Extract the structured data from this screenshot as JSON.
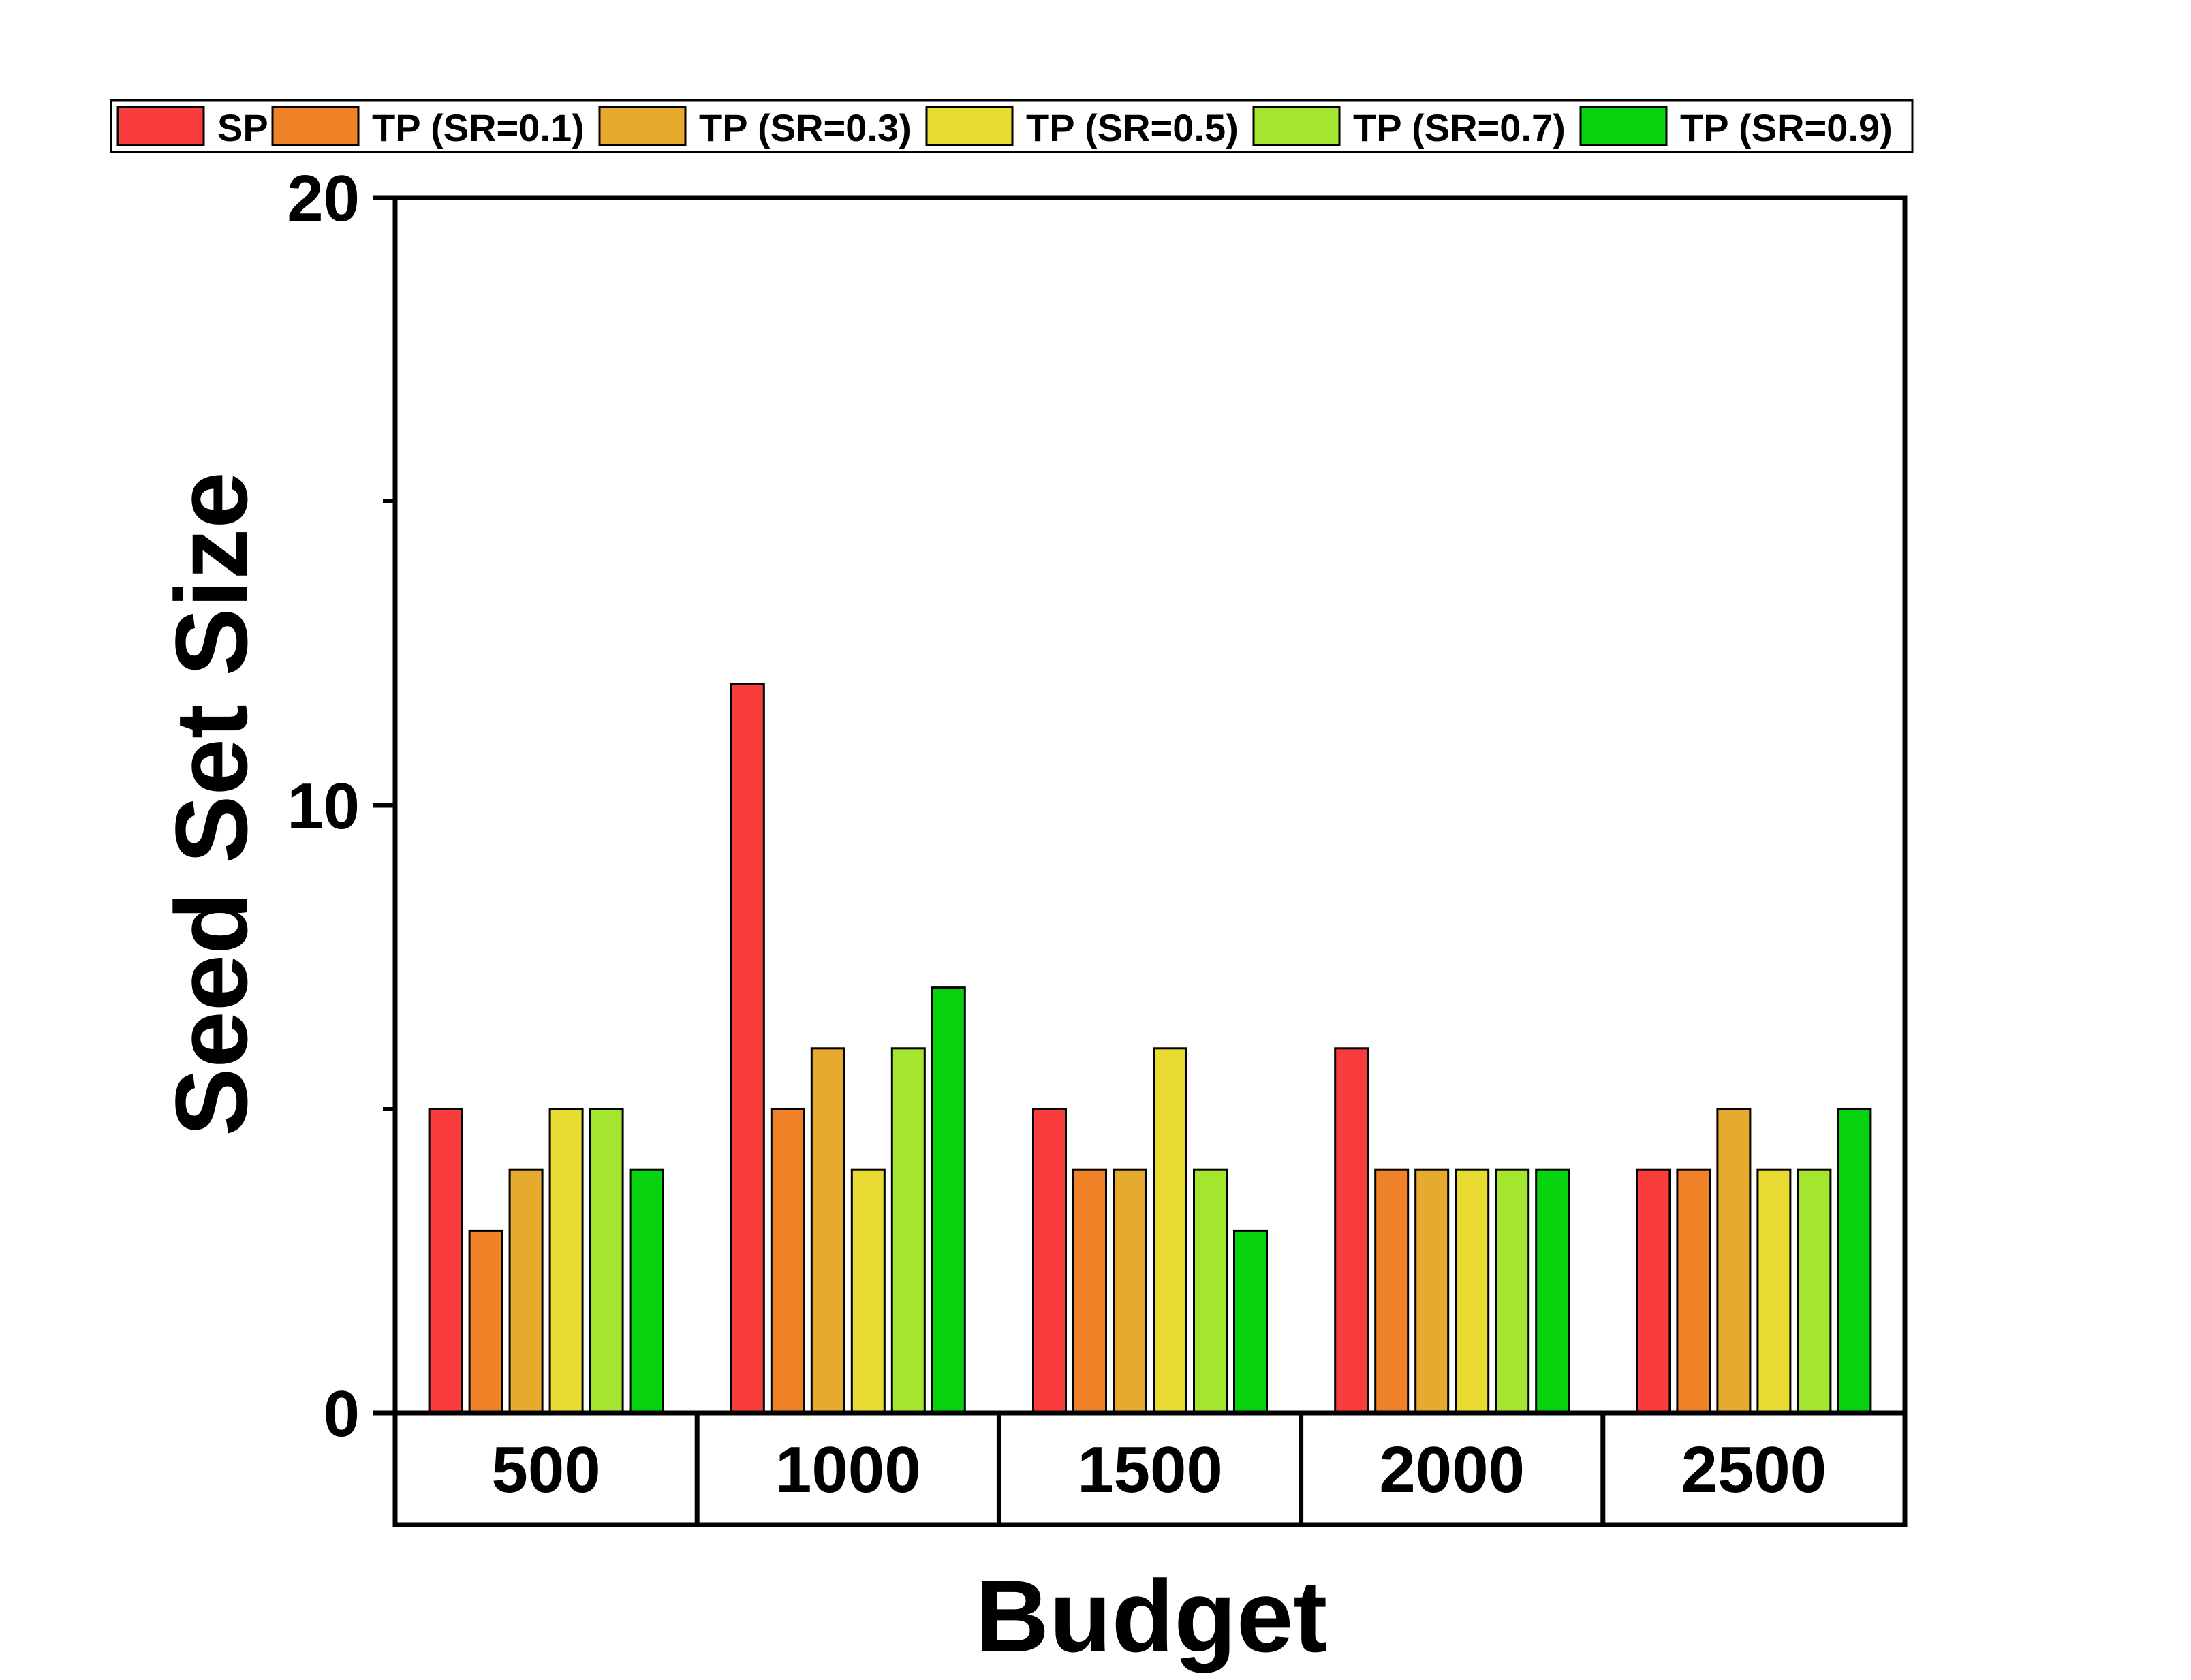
{
  "chart_data": {
    "type": "bar",
    "title": "",
    "xlabel": "Budget",
    "ylabel": "Seed Set Size",
    "categories": [
      "500",
      "1000",
      "1500",
      "2000",
      "2500"
    ],
    "ylim": [
      0,
      20
    ],
    "yticks": [
      0,
      10,
      20
    ],
    "yminor_ticks": [
      5,
      15
    ],
    "grid": false,
    "legend_position": "top",
    "series": [
      {
        "name": "SP",
        "color": "#f93c3c",
        "values": [
          5,
          12,
          5,
          6,
          4
        ]
      },
      {
        "name": "TP (SR=0.1)",
        "color": "#ef8227",
        "values": [
          3,
          5,
          4,
          4,
          4
        ]
      },
      {
        "name": "TP (SR=0.3)",
        "color": "#e6ab2e",
        "values": [
          4,
          6,
          4,
          4,
          5
        ]
      },
      {
        "name": "TP (SR=0.5)",
        "color": "#e8dc32",
        "values": [
          5,
          4,
          6,
          4,
          4
        ]
      },
      {
        "name": "TP (SR=0.7)",
        "color": "#a3e52f",
        "values": [
          5,
          6,
          4,
          4,
          4
        ]
      },
      {
        "name": "TP (SR=0.9)",
        "color": "#06d20d",
        "values": [
          4,
          7,
          3,
          4,
          5
        ]
      }
    ]
  }
}
